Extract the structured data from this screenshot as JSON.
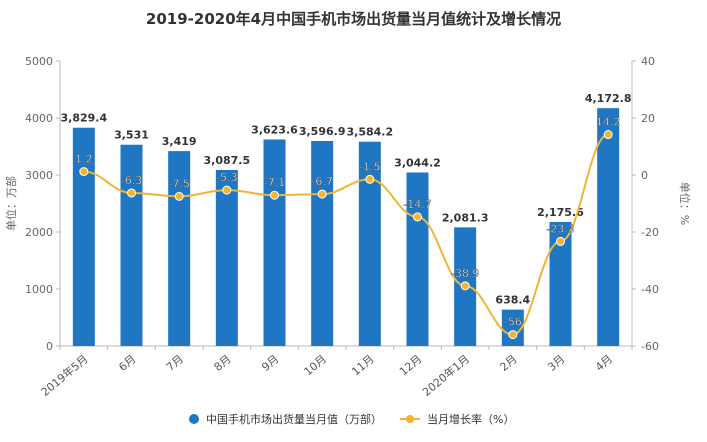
{
  "chart_data": {
    "type": "bar",
    "title": "2019-2020年4月中国手机市场出货量当月值统计及增长情况",
    "categories": [
      "2019年5月",
      "6月",
      "7月",
      "8月",
      "9月",
      "10月",
      "11月",
      "12月",
      "2020年1月",
      "2月",
      "3月",
      "4月"
    ],
    "series": [
      {
        "name": "中国手机市场出货量当月值（万部）",
        "type": "bar",
        "axis": "left",
        "color": "#1f77c4",
        "values": [
          3829.4,
          3531,
          3419,
          3087.5,
          3623.6,
          3596.9,
          3584.2,
          3044.2,
          2081.3,
          638.4,
          2175.6,
          4172.8
        ],
        "labels": [
          "3,829.4",
          "3,531",
          "3,419",
          "3,087.5",
          "3,623.6",
          "3,596.9",
          "3,584.2",
          "3,044.2",
          "2,081.3",
          "638.4",
          "2,175.6",
          "4,172.8"
        ]
      },
      {
        "name": "当月增长率（%）",
        "type": "line",
        "axis": "right",
        "color": "#f0b535",
        "values": [
          1.2,
          -6.3,
          -7.5,
          -5.3,
          -7.1,
          -6.7,
          -1.5,
          -14.7,
          -38.9,
          -56,
          -23.3,
          14.2
        ],
        "labels": [
          "1.2",
          "-6.3",
          "-7.5",
          "-5.3",
          "-7.1",
          "-6.7",
          "-1.5",
          "-14.7",
          "-38.9",
          "-56",
          "-23.3",
          "14.2"
        ]
      }
    ],
    "ylabel": "单位：万部",
    "y2label": "单位：%",
    "ylim": [
      0,
      5000
    ],
    "y2lim": [
      -60,
      40
    ],
    "yticks": [
      0,
      1000,
      2000,
      3000,
      4000,
      5000
    ],
    "y2ticks": [
      -60,
      -40,
      -20,
      0,
      20,
      40
    ],
    "grid": false,
    "legend": "bottom"
  }
}
